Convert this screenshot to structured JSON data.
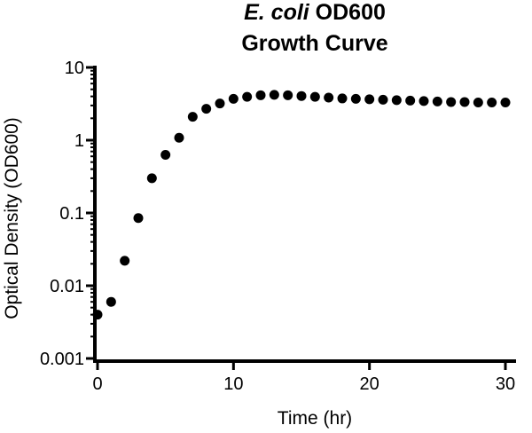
{
  "chart_data": {
    "type": "scatter",
    "title": {
      "line1_italic": "E. coli",
      "line1_rest": " OD600",
      "line2": "Growth Curve"
    },
    "xlabel": "Time (hr)",
    "ylabel": "Optical Density (OD600)",
    "x_scale": "linear",
    "y_scale": "log",
    "xlim": [
      0,
      30
    ],
    "ylim": [
      0.001,
      10
    ],
    "x_ticks": [
      0,
      10,
      20,
      30
    ],
    "x_tick_labels": [
      "0",
      "10",
      "20",
      "30"
    ],
    "y_ticks": [
      0.001,
      0.01,
      0.1,
      1,
      10
    ],
    "y_tick_labels": [
      "0.001",
      "0.01",
      "0.1",
      "1",
      "10"
    ],
    "grid": false,
    "marker_color": "#000000",
    "series": [
      {
        "name": "OD600",
        "x": [
          0,
          1,
          2,
          3,
          4,
          5,
          6,
          7,
          8,
          9,
          10,
          11,
          12,
          13,
          14,
          15,
          16,
          17,
          18,
          19,
          20,
          21,
          22,
          23,
          24,
          25,
          26,
          27,
          28,
          29,
          30
        ],
        "y": [
          0.004,
          0.006,
          0.022,
          0.085,
          0.3,
          0.63,
          1.08,
          2.1,
          2.7,
          3.2,
          3.7,
          3.95,
          4.15,
          4.2,
          4.15,
          4.05,
          3.95,
          3.85,
          3.75,
          3.7,
          3.65,
          3.6,
          3.55,
          3.5,
          3.45,
          3.4,
          3.35,
          3.35,
          3.3,
          3.3,
          3.3
        ]
      }
    ]
  }
}
